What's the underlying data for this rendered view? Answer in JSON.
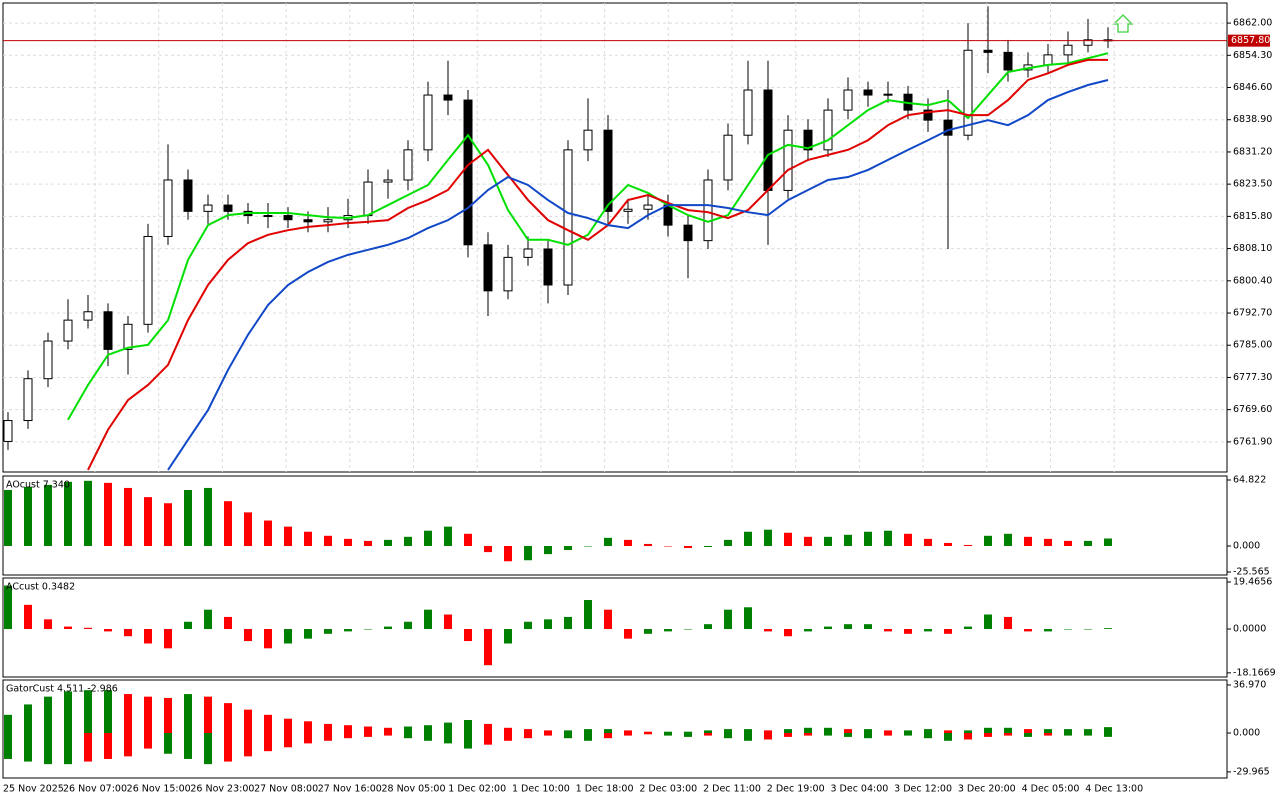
{
  "chart_data": [
    {
      "type": "candlestick",
      "open": [
        6762.0,
        6767.0,
        6777.0,
        6786.0,
        6791.0,
        6793.0,
        6784.0,
        6790.0,
        6811.0,
        6824.5,
        6817.0,
        6818.5,
        6817.0,
        6816.0,
        6816.0,
        6815.0,
        6814.5,
        6815.0,
        6816.0,
        6824.0,
        6824.5,
        6831.7,
        6844.8,
        6843.6,
        6809.0,
        6798.0,
        6806.0,
        6808.0,
        6799.4,
        6831.7,
        6836.4,
        6817.0,
        6817.5,
        6818.5,
        6813.7,
        6810.0,
        6824.5,
        6835.2,
        6846.0,
        6822.0,
        6836.4,
        6831.7,
        6841.2,
        6846.0,
        6844.8,
        6845.0,
        6841.2,
        6838.8,
        6835.2,
        6855.5,
        6855.0,
        6850.8,
        6852.0,
        6854.4,
        6856.7,
        6858.0
      ],
      "high": [
        6769,
        6779,
        6788,
        6796,
        6797,
        6795,
        6792,
        6814,
        6833,
        6827,
        6821,
        6821,
        6819,
        6819,
        6818,
        6817,
        6818,
        6820,
        6827,
        6827,
        6834,
        6848,
        6853,
        6846,
        6812,
        6809,
        6811,
        6810,
        6834,
        6844,
        6840,
        6820,
        6821,
        6821,
        6816,
        6827,
        6838,
        6853,
        6853,
        6840,
        6839,
        6844,
        6849,
        6848,
        6848,
        6847,
        6844,
        6846,
        6862,
        6866,
        6858,
        6855,
        6857,
        6860,
        6863,
        6861
      ],
      "low": [
        6760,
        6765,
        6775,
        6784,
        6789,
        6780,
        6778,
        6788,
        6809,
        6815,
        6814,
        6815,
        6814,
        6813,
        6813,
        6812,
        6812,
        6813,
        6814,
        6820,
        6822,
        6829,
        6840,
        6806,
        6792,
        6796,
        6804,
        6795,
        6797,
        6829,
        6814,
        6814,
        6815,
        6811,
        6801,
        6808,
        6822,
        6833,
        6809,
        6820,
        6829,
        6830,
        6839,
        6842,
        6843,
        6839,
        6836,
        6808,
        6834,
        6850,
        6848,
        6849,
        6850,
        6852,
        6855,
        6856
      ],
      "close": [
        6767.0,
        6777.0,
        6786.0,
        6791.0,
        6793.0,
        6784.0,
        6790.0,
        6811.0,
        6824.5,
        6817.0,
        6818.5,
        6817.0,
        6816.0,
        6816.0,
        6815.0,
        6814.5,
        6815.0,
        6816.0,
        6824.0,
        6824.5,
        6831.7,
        6844.8,
        6843.6,
        6809.0,
        6798.0,
        6806.0,
        6808.0,
        6799.4,
        6831.7,
        6836.4,
        6817.0,
        6817.5,
        6818.5,
        6813.7,
        6810.0,
        6824.5,
        6835.2,
        6846.0,
        6822.0,
        6836.4,
        6831.7,
        6841.2,
        6846.0,
        6844.8,
        6845.0,
        6841.2,
        6838.8,
        6835.2,
        6855.5,
        6855.0,
        6850.8,
        6852.0,
        6854.4,
        6856.7,
        6858.0,
        6857.8
      ],
      "lines": [
        {
          "color": "#00e000",
          "values": [
            null,
            null,
            null,
            6767.2,
            6775.5,
            6782.7,
            6784.4,
            6785.1,
            6791.0,
            6805.4,
            6813.7,
            6816.1,
            6816.6,
            6816.6,
            6816.6,
            6816.1,
            6815.6,
            6815.4,
            6816.1,
            6818.5,
            6820.9,
            6823.3,
            6829.3,
            6835.2,
            6828.1,
            6817.3,
            6810.2,
            6810.2,
            6809.0,
            6811.4,
            6818.5,
            6823.3,
            6821.4,
            6818.5,
            6816.1,
            6814.5,
            6816.1,
            6823.3,
            6830.5,
            6832.9,
            6832.1,
            6834.0,
            6837.6,
            6841.2,
            6843.6,
            6842.9,
            6842.4,
            6843.6,
            6839.3,
            6844.8,
            6850.3,
            6851.2,
            6852.0,
            6852.4,
            6853.6,
            6854.8
          ]
        },
        {
          "color": "#e00000",
          "values": [
            null,
            null,
            null,
            null,
            6755.2,
            6764.8,
            6771.9,
            6775.5,
            6780.3,
            6791.0,
            6799.4,
            6805.4,
            6809.4,
            6811.4,
            6812.5,
            6813.3,
            6813.7,
            6814.2,
            6814.5,
            6814.9,
            6817.8,
            6819.7,
            6822.1,
            6828.1,
            6831.7,
            6825.7,
            6819.7,
            6814.9,
            6812.5,
            6810.2,
            6813.7,
            6819.7,
            6820.9,
            6819.0,
            6817.3,
            6816.8,
            6815.4,
            6817.3,
            6822.1,
            6826.9,
            6829.3,
            6830.5,
            6831.7,
            6834.0,
            6837.6,
            6840.0,
            6840.7,
            6841.2,
            6840.0,
            6840.0,
            6843.6,
            6848.4,
            6850.0,
            6852.0,
            6853.2,
            6853.2
          ]
        },
        {
          "color": "#1048c8",
          "values": [
            null,
            null,
            null,
            null,
            null,
            null,
            null,
            null,
            6755.2,
            6762.4,
            6769.5,
            6779.1,
            6787.5,
            6794.6,
            6799.4,
            6802.5,
            6804.9,
            6806.6,
            6807.8,
            6809.0,
            6810.6,
            6813.0,
            6814.9,
            6817.8,
            6822.1,
            6825.2,
            6823.3,
            6819.7,
            6816.6,
            6815.4,
            6813.7,
            6813.0,
            6816.1,
            6818.5,
            6818.5,
            6818.5,
            6817.8,
            6816.8,
            6816.1,
            6819.7,
            6822.1,
            6824.5,
            6825.2,
            6826.9,
            6829.3,
            6831.7,
            6834.0,
            6836.4,
            6837.6,
            6838.8,
            6837.6,
            6840.0,
            6843.6,
            6845.5,
            6847.2,
            6848.4
          ]
        }
      ],
      "ylim": [
        6754.7,
        6866.8
      ],
      "yticks": [
        {
          "value": 6862.0,
          "label": "6862.00"
        },
        {
          "value": 6854.3,
          "label": "6854.30"
        },
        {
          "value": 6846.6,
          "label": "6846.60"
        },
        {
          "value": 6838.9,
          "label": "6838.90"
        },
        {
          "value": 6831.2,
          "label": "6831.20"
        },
        {
          "value": 6823.5,
          "label": "6823.50"
        },
        {
          "value": 6815.8,
          "label": "6815.80"
        },
        {
          "value": 6808.1,
          "label": "6808.10"
        },
        {
          "value": 6800.4,
          "label": "6800.40"
        },
        {
          "value": 6792.7,
          "label": "6792.70"
        },
        {
          "value": 6785.0,
          "label": "6785.00"
        },
        {
          "value": 6777.3,
          "label": "6777.30"
        },
        {
          "value": 6769.6,
          "label": "6769.60"
        },
        {
          "value": 6761.9,
          "label": "6761.90"
        }
      ],
      "current_price": {
        "value": 6857.8,
        "label": "6857.80",
        "color": "#c00000"
      },
      "time_labels": [
        "25 Nov 2025",
        "26 Nov 07:00",
        "26 Nov 15:00",
        "26 Nov 23:00",
        "27 Nov 08:00",
        "27 Nov 16:00",
        "28 Nov 05:00",
        "1 Dec 02:00",
        "1 Dec 10:00",
        "1 Dec 18:00",
        "2 Dec 03:00",
        "2 Dec 11:00",
        "2 Dec 19:00",
        "3 Dec 04:00",
        "3 Dec 12:00",
        "3 Dec 20:00",
        "4 Dec 05:00",
        "4 Dec 13:00"
      ],
      "grid": true
    },
    {
      "type": "oscillator",
      "title": "AOcust 7.340",
      "up_color": "#008000",
      "down_color": "#ff0000",
      "values": [
        55,
        58,
        60,
        63,
        64,
        62,
        57,
        48,
        42,
        55,
        57,
        44,
        33,
        25,
        19,
        14,
        10,
        7,
        5,
        6,
        9,
        15,
        19,
        12,
        -6,
        -15,
        -14,
        -8,
        -4,
        0,
        8,
        6,
        2,
        0,
        -2,
        -1,
        6,
        14,
        16,
        13,
        9,
        9,
        11,
        14,
        15,
        12,
        7,
        3,
        1,
        10,
        12,
        9,
        7,
        5,
        5,
        7.34
      ],
      "ylim": [
        -28.5,
        68.75
      ],
      "yticks": [
        {
          "value": 64.822,
          "label": "64.822"
        },
        {
          "value": 0,
          "label": "0.000"
        },
        {
          "value": -25.565,
          "label": "-25.565"
        }
      ]
    },
    {
      "type": "oscillator",
      "title": "ACcust 0.3482",
      "up_color": "#008000",
      "down_color": "#ff0000",
      "values": [
        18,
        10,
        4,
        1,
        0.5,
        -1,
        -3,
        -6,
        -8,
        3,
        8,
        5,
        -5,
        -8,
        -6,
        -4,
        -2,
        -1,
        0,
        1,
        3,
        8,
        6,
        -5,
        -15,
        -6,
        3,
        4,
        5,
        12,
        8,
        -4,
        -2,
        -1,
        0,
        2,
        8,
        9,
        -1,
        -3,
        -1,
        1,
        2,
        2,
        -1,
        -2,
        -1,
        -2,
        1,
        6,
        5,
        -1,
        -1,
        0,
        0,
        0.35
      ],
      "ylim": [
        -19.88,
        21.12
      ],
      "yticks": [
        {
          "value": 19.4656,
          "label": "19.4656"
        },
        {
          "value": 0,
          "label": "0.0000"
        },
        {
          "value": -18.1669,
          "label": "-18.1669"
        }
      ]
    },
    {
      "type": "gator",
      "title": "GatorCust 4.511 -2.986",
      "up_color": "#008000",
      "down_color": "#ff0000",
      "upper": [
        14,
        22,
        28,
        32,
        33,
        33,
        30,
        28,
        27,
        30,
        28,
        23,
        18,
        14,
        11,
        9,
        7,
        6,
        5,
        4,
        5,
        6,
        8,
        10,
        7,
        4,
        3,
        2,
        2,
        3,
        3,
        2,
        1,
        1,
        1,
        2,
        3,
        3,
        2,
        3,
        4,
        4,
        3,
        3,
        2,
        2,
        3,
        2,
        2,
        4,
        4,
        3,
        3,
        3,
        3,
        4.511
      ],
      "lower": [
        -20,
        -22,
        -24,
        -24,
        -22,
        -20,
        -18,
        -12,
        -16,
        -20,
        -24,
        -22,
        -18,
        -14,
        -11,
        -8,
        -6,
        -4,
        -3,
        -2,
        -4,
        -6,
        -8,
        -12,
        -9,
        -6,
        -4,
        -2,
        -4,
        -6,
        -4,
        -2,
        -1,
        -2,
        -3,
        -2,
        -4,
        -6,
        -5,
        -3,
        -2,
        -2,
        -3,
        -4,
        -2,
        -2,
        -4,
        -6,
        -5,
        -3,
        -2,
        -3,
        -2,
        -2,
        -2,
        -2.986
      ],
      "ylim": [
        -34.67,
        40.82
      ],
      "yticks": [
        {
          "value": 36.97,
          "label": "36.970"
        },
        {
          "value": 0,
          "label": "0.000"
        },
        {
          "value": -29.965,
          "label": "-29.965"
        }
      ]
    }
  ]
}
